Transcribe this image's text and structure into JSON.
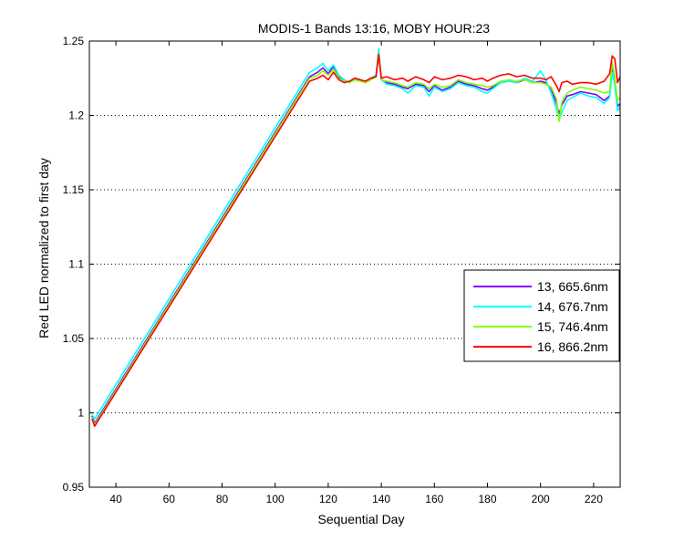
{
  "chart_data": {
    "type": "line",
    "title": "MODIS-1 Bands 13:16, MOBY HOUR:23",
    "xlabel": "Sequential Day",
    "ylabel": "Red LED normalized to first day",
    "xlim": [
      30,
      230
    ],
    "ylim": [
      0.95,
      1.25
    ],
    "xticks": [
      40,
      60,
      80,
      100,
      120,
      140,
      160,
      180,
      200,
      220
    ],
    "yticks": [
      0.95,
      1,
      1.05,
      1.1,
      1.15,
      1.2,
      1.25
    ],
    "ytick_labels": [
      "0.95",
      "1",
      "1.05",
      "1.1",
      "1.15",
      "1.2",
      "1.25"
    ],
    "grid": "horizontal-dotted",
    "legend_position": "right",
    "series": [
      {
        "name": "13, 665.6nm",
        "color": "#8000ff",
        "x": [
          31,
          32,
          113,
          116,
          118,
          120,
          122,
          124,
          126,
          128,
          130,
          132,
          134,
          136,
          138,
          139,
          140,
          142,
          145,
          148,
          150,
          153,
          156,
          158,
          160,
          163,
          166,
          169,
          172,
          175,
          178,
          180,
          182,
          185,
          188,
          191,
          194,
          197,
          200,
          202,
          204,
          206,
          207,
          208,
          210,
          212,
          215,
          218,
          221,
          224,
          226,
          227,
          228,
          229,
          230
        ],
        "y": [
          0.998,
          0.993,
          1.226,
          1.229,
          1.232,
          1.228,
          1.233,
          1.226,
          1.224,
          1.222,
          1.225,
          1.224,
          1.222,
          1.224,
          1.226,
          1.243,
          1.224,
          1.222,
          1.221,
          1.219,
          1.218,
          1.221,
          1.22,
          1.216,
          1.22,
          1.217,
          1.219,
          1.223,
          1.221,
          1.22,
          1.218,
          1.217,
          1.219,
          1.222,
          1.223,
          1.222,
          1.224,
          1.222,
          1.223,
          1.222,
          1.218,
          1.208,
          1.201,
          1.207,
          1.213,
          1.214,
          1.216,
          1.215,
          1.214,
          1.21,
          1.213,
          1.231,
          1.222,
          1.206,
          1.208
        ]
      },
      {
        "name": "14, 676.7nm",
        "color": "#00ffff",
        "x": [
          31,
          32,
          113,
          116,
          118,
          120,
          122,
          124,
          126,
          128,
          130,
          132,
          134,
          136,
          138,
          139,
          140,
          142,
          145,
          148,
          150,
          153,
          156,
          158,
          160,
          163,
          166,
          169,
          172,
          175,
          178,
          180,
          182,
          185,
          188,
          191,
          194,
          197,
          200,
          202,
          204,
          206,
          207,
          208,
          210,
          212,
          215,
          218,
          221,
          224,
          226,
          227,
          228,
          229,
          230
        ],
        "y": [
          0.999,
          0.996,
          1.229,
          1.232,
          1.235,
          1.23,
          1.234,
          1.227,
          1.224,
          1.222,
          1.225,
          1.224,
          1.222,
          1.225,
          1.227,
          1.245,
          1.224,
          1.221,
          1.22,
          1.218,
          1.215,
          1.22,
          1.219,
          1.213,
          1.219,
          1.216,
          1.218,
          1.222,
          1.22,
          1.219,
          1.216,
          1.215,
          1.218,
          1.222,
          1.223,
          1.222,
          1.225,
          1.223,
          1.23,
          1.224,
          1.215,
          1.204,
          1.197,
          1.202,
          1.21,
          1.212,
          1.215,
          1.213,
          1.212,
          1.208,
          1.212,
          1.229,
          1.22,
          1.203,
          1.206
        ]
      },
      {
        "name": "15, 746.4nm",
        "color": "#80ff00",
        "x": [
          31,
          32,
          113,
          116,
          118,
          120,
          122,
          124,
          126,
          128,
          130,
          132,
          134,
          136,
          138,
          139,
          140,
          142,
          145,
          148,
          150,
          153,
          156,
          158,
          160,
          163,
          166,
          169,
          172,
          175,
          178,
          180,
          182,
          185,
          188,
          191,
          194,
          197,
          200,
          202,
          204,
          206,
          207,
          208,
          210,
          212,
          215,
          218,
          221,
          224,
          226,
          227,
          228,
          229,
          230
        ],
        "y": [
          0.997,
          0.992,
          1.225,
          1.227,
          1.23,
          1.227,
          1.231,
          1.225,
          1.223,
          1.222,
          1.224,
          1.223,
          1.222,
          1.224,
          1.226,
          1.242,
          1.224,
          1.223,
          1.222,
          1.22,
          1.219,
          1.222,
          1.221,
          1.218,
          1.221,
          1.219,
          1.22,
          1.224,
          1.222,
          1.221,
          1.22,
          1.219,
          1.22,
          1.223,
          1.224,
          1.223,
          1.224,
          1.222,
          1.222,
          1.221,
          1.219,
          1.211,
          1.196,
          1.209,
          1.215,
          1.217,
          1.219,
          1.218,
          1.217,
          1.215,
          1.216,
          1.236,
          1.225,
          1.21,
          1.212
        ]
      },
      {
        "name": "16, 866.2nm",
        "color": "#ff0000",
        "x": [
          31,
          32,
          113,
          116,
          118,
          120,
          122,
          124,
          126,
          128,
          130,
          132,
          134,
          136,
          138,
          139,
          140,
          142,
          145,
          148,
          150,
          153,
          156,
          158,
          160,
          163,
          166,
          169,
          172,
          175,
          178,
          180,
          182,
          185,
          188,
          191,
          194,
          197,
          200,
          202,
          204,
          206,
          207,
          208,
          210,
          212,
          215,
          218,
          221,
          224,
          226,
          227,
          228,
          229,
          230
        ],
        "y": [
          0.996,
          0.991,
          1.223,
          1.225,
          1.227,
          1.224,
          1.229,
          1.224,
          1.222,
          1.223,
          1.225,
          1.224,
          1.223,
          1.225,
          1.226,
          1.241,
          1.225,
          1.226,
          1.224,
          1.225,
          1.223,
          1.226,
          1.224,
          1.222,
          1.226,
          1.224,
          1.225,
          1.227,
          1.226,
          1.224,
          1.225,
          1.223,
          1.225,
          1.227,
          1.228,
          1.226,
          1.227,
          1.225,
          1.225,
          1.224,
          1.226,
          1.22,
          1.216,
          1.222,
          1.223,
          1.221,
          1.222,
          1.222,
          1.221,
          1.223,
          1.228,
          1.24,
          1.238,
          1.222,
          1.226
        ]
      }
    ]
  }
}
